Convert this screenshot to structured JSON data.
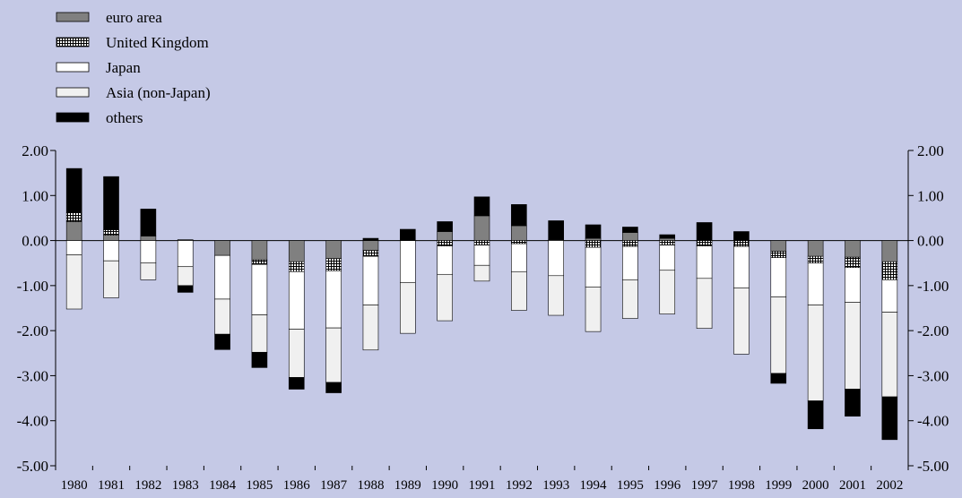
{
  "chart_data": {
    "type": "bar",
    "stacked": true,
    "categories": [
      "1980",
      "1981",
      "1982",
      "1983",
      "1984",
      "1985",
      "1986",
      "1987",
      "1988",
      "1989",
      "1990",
      "1991",
      "1992",
      "1993",
      "1994",
      "1995",
      "1996",
      "1997",
      "1998",
      "1999",
      "2000",
      "2001",
      "2002"
    ],
    "ylim": [
      -5,
      2
    ],
    "yticks": [
      2,
      1,
      0,
      -1,
      -2,
      -3,
      -4,
      -5
    ],
    "ytick_labels": [
      "2.00",
      "1.00",
      "0.00",
      "-1.00",
      "-2.00",
      "-3.00",
      "-4.00",
      "-5.00"
    ],
    "ytick_labels_right": [
      "2.00",
      "1.00",
      "0.00",
      "-1.00",
      "-2.00",
      "-3.00",
      "-4.00",
      "-5.00"
    ],
    "legend_position": "top-left",
    "series": [
      {
        "name": "euro area",
        "color": "#808080",
        "pattern": "solid",
        "values": [
          0.42,
          0.12,
          0.1,
          0.02,
          -0.33,
          -0.43,
          -0.47,
          -0.4,
          -0.22,
          0.0,
          0.2,
          0.55,
          0.33,
          0.02,
          0.05,
          0.18,
          0.05,
          0.0,
          0.0,
          -0.24,
          -0.35,
          -0.37,
          -0.47
        ]
      },
      {
        "name": "United Kingdom",
        "color": "#ffffff",
        "pattern": "grid",
        "values": [
          0.2,
          0.12,
          0.0,
          0.0,
          0.0,
          -0.1,
          -0.22,
          -0.27,
          -0.13,
          0.0,
          -0.12,
          -0.1,
          -0.07,
          0.0,
          -0.15,
          -0.13,
          -0.1,
          -0.12,
          -0.13,
          -0.14,
          -0.15,
          -0.23,
          -0.4
        ]
      },
      {
        "name": "Japan",
        "color": "#ffffff",
        "pattern": "solid",
        "values": [
          -0.32,
          -0.45,
          -0.5,
          -0.58,
          -0.97,
          -1.12,
          -1.28,
          -1.27,
          -1.08,
          -0.93,
          -0.63,
          -0.45,
          -0.62,
          -0.78,
          -0.88,
          -0.74,
          -0.56,
          -0.72,
          -0.92,
          -0.87,
          -0.93,
          -0.77,
          -0.72
        ]
      },
      {
        "name": "Asia (non-Japan)",
        "color": "#f0f0f0",
        "pattern": "solid",
        "values": [
          -1.2,
          -0.82,
          -0.37,
          -0.42,
          -0.78,
          -0.83,
          -1.07,
          -1.21,
          -1.0,
          -1.13,
          -1.03,
          -0.35,
          -0.86,
          -0.88,
          -0.99,
          -0.86,
          -0.97,
          -1.11,
          -1.47,
          -1.7,
          -2.13,
          -1.93,
          -1.88
        ]
      },
      {
        "name": "others",
        "color": "#000000",
        "pattern": "solid",
        "values": [
          0.98,
          1.18,
          0.6,
          -0.15,
          -0.34,
          -0.34,
          -0.26,
          -0.23,
          0.05,
          0.25,
          0.22,
          0.42,
          0.47,
          0.42,
          0.3,
          0.12,
          0.08,
          0.4,
          0.2,
          -0.22,
          -0.62,
          -0.6,
          -0.95
        ]
      }
    ]
  }
}
